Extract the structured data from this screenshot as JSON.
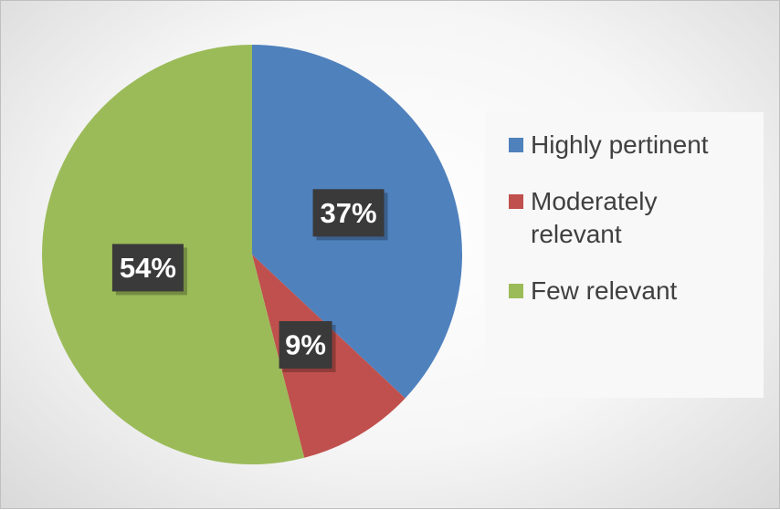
{
  "chart_data": {
    "type": "pie",
    "categories": [
      "Highly pertinent",
      "Moderately relevant",
      "Few relevant"
    ],
    "values": [
      37,
      9,
      54
    ],
    "value_labels": [
      "37%",
      "9%",
      "54%"
    ],
    "colors": [
      "#4f81bd",
      "#c0504d",
      "#9bbb59"
    ],
    "legend": "right"
  }
}
